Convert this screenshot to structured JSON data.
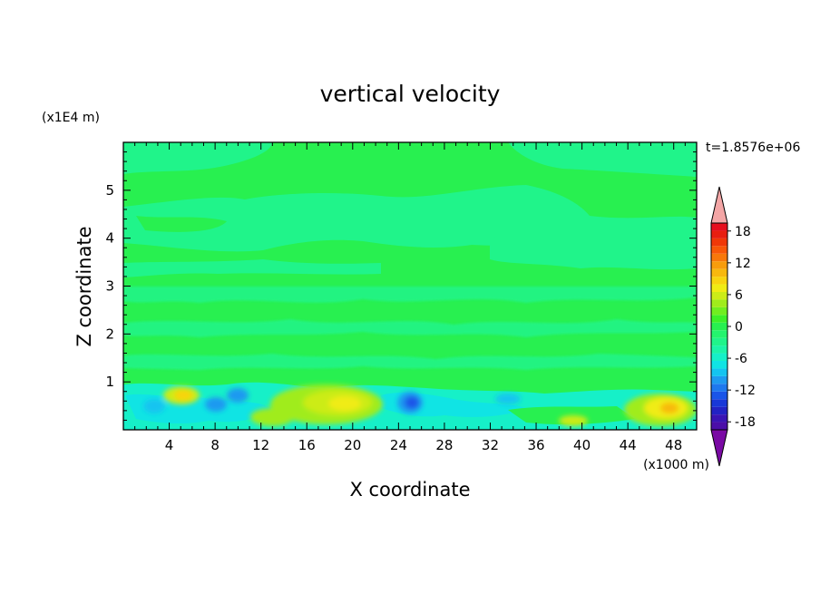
{
  "chart_data": {
    "type": "heatmap",
    "title": "vertical velocity",
    "xlabel": "X coordinate",
    "ylabel": "Z coordinate",
    "x_unit": "(x1000 m)",
    "y_unit": "(x1E4 m)",
    "time_label": "t=1.8576e+06",
    "xlim": [
      0,
      50
    ],
    "ylim": [
      0,
      6
    ],
    "x_ticks": [
      4,
      8,
      12,
      16,
      20,
      24,
      28,
      32,
      36,
      40,
      44,
      48
    ],
    "y_ticks": [
      1,
      2,
      3,
      4,
      5
    ],
    "colorbar": {
      "levels": [
        -21,
        -19.5,
        -18,
        -16.5,
        -15,
        -13.5,
        -12,
        -10.5,
        -9,
        -7.5,
        -6,
        -4.5,
        -3,
        -1.5,
        0,
        1.5,
        3,
        4.5,
        6,
        7.5,
        9,
        10.5,
        12,
        13.5,
        15,
        16.5,
        18,
        19.5,
        21
      ],
      "tick_labels": [
        "18",
        "12",
        "6",
        "0",
        "-6",
        "-12",
        "-18"
      ],
      "tick_values": [
        18,
        12,
        6,
        0,
        -6,
        -12,
        -18
      ],
      "colors": [
        "#7a0aa4",
        "#4b0ea8",
        "#3a14b4",
        "#2222c4",
        "#1838d8",
        "#1a55e8",
        "#1e78ee",
        "#1e9af0",
        "#14c4f0",
        "#10e4e4",
        "#16f0c8",
        "#1cf4a8",
        "#20f48a",
        "#24f46e",
        "#28f050",
        "#3cf028",
        "#70ee20",
        "#a0ec1c",
        "#ccec18",
        "#f0ec14",
        "#f8d410",
        "#f8b80e",
        "#f89c0c",
        "#f8780a",
        "#f85808",
        "#f03808",
        "#e81e10",
        "#e60e1e",
        "#f4a6a6"
      ]
    },
    "features": [
      {
        "label": "positive",
        "x": 46,
        "z": 0.4,
        "value": 9
      },
      {
        "label": "positive",
        "x": 20,
        "z": 0.55,
        "value": 6
      },
      {
        "label": "positive",
        "x": 6,
        "z": 0.7,
        "value": 6
      },
      {
        "label": "negative",
        "x": 25.5,
        "z": 0.5,
        "value": -9
      },
      {
        "label": "negative",
        "x": 9,
        "z": 0.5,
        "value": -6
      },
      {
        "label": "positive",
        "x": 39,
        "z": 0.2,
        "value": 4
      }
    ]
  }
}
